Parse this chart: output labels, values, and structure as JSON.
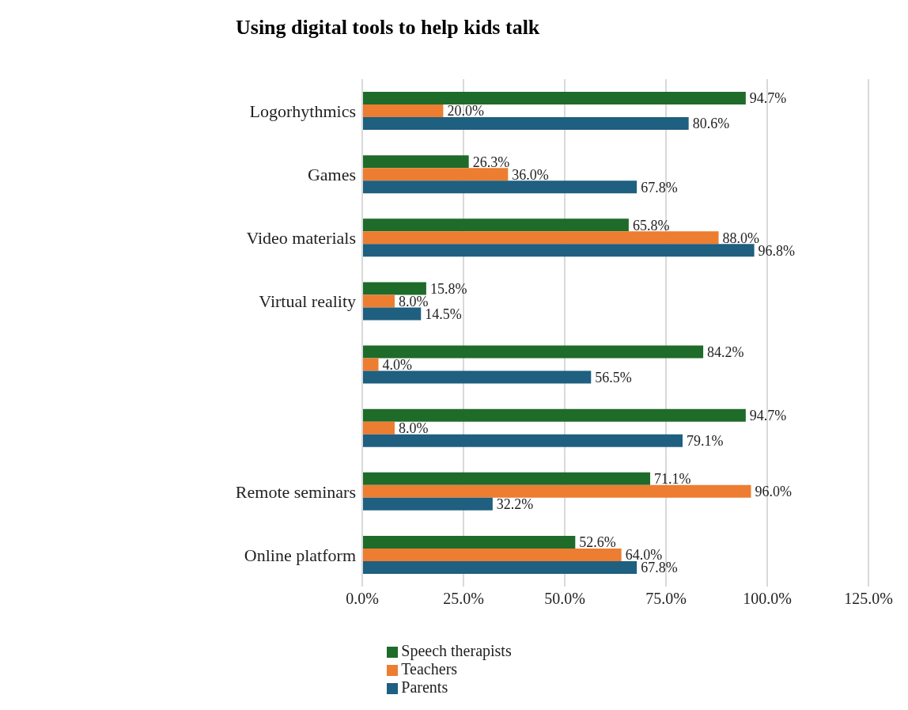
{
  "chart_data": {
    "type": "bar",
    "orientation": "horizontal",
    "title": "Using digital tools to help kids talk",
    "categories": [
      "Logorhythmics",
      "Games",
      "Video materials",
      "Virtual reality",
      null,
      null,
      "Remote seminars",
      "Online platform"
    ],
    "series": [
      {
        "name": "Speech therapists",
        "color": "#1e6b2a",
        "values": [
          94.7,
          26.3,
          65.8,
          15.8,
          84.2,
          94.7,
          71.1,
          52.6
        ],
        "value_labels": [
          "94.7%",
          "26.3%",
          "65.8%",
          "15.8%",
          "84.2%",
          "94.7%",
          "71.1%",
          "52.6%"
        ]
      },
      {
        "name": "Teachers",
        "color": "#ed7d31",
        "values": [
          20.0,
          36.0,
          88.0,
          8.0,
          4.0,
          8.0,
          96.0,
          64.0
        ],
        "value_labels": [
          "20.0%",
          "36.0%",
          "88.0%",
          "8.0%",
          "4.0%",
          "8.0%",
          "96.0%",
          "64.0%"
        ]
      },
      {
        "name": "Parents",
        "color": "#1f5f80",
        "values": [
          80.6,
          67.8,
          96.8,
          14.5,
          56.5,
          79.1,
          32.2,
          67.8
        ],
        "value_labels": [
          "80.6%",
          "67.8%",
          "96.8%",
          "14.5%",
          "56.5%",
          "79.1%",
          "32.2%",
          "67.8%"
        ]
      }
    ],
    "xlim": [
      0,
      125
    ],
    "xticks": [
      {
        "value": 0,
        "label": "0.0%"
      },
      {
        "value": 25,
        "label": "25.0%"
      },
      {
        "value": 50,
        "label": "50.0%"
      },
      {
        "value": 75,
        "label": "75.0%"
      },
      {
        "value": 100,
        "label": "100.0%"
      },
      {
        "value": 125,
        "label": "125.0%"
      }
    ],
    "grid": "x",
    "legend": "bottom"
  }
}
